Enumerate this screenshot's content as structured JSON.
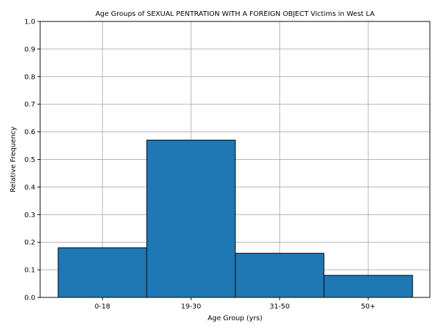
{
  "chart_data": {
    "type": "bar",
    "title": "Age Groups of SEXUAL PENTRATION WITH A FOREIGN OBJECT Victims in West LA",
    "xlabel": "Age Group (yrs)",
    "ylabel": "Relative Frequency",
    "categories": [
      "0-18",
      "19-30",
      "31-50",
      "50+"
    ],
    "values": [
      0.18,
      0.57,
      0.16,
      0.08
    ],
    "ylim": [
      0,
      1.0
    ],
    "yticks": [
      "0.0",
      "0.1",
      "0.2",
      "0.3",
      "0.4",
      "0.5",
      "0.6",
      "0.7",
      "0.8",
      "0.9",
      "1.0"
    ],
    "grid": true,
    "bar_color": "#1f77b4",
    "edge_color": "#000000",
    "grid_color": "#b0b0b0"
  }
}
